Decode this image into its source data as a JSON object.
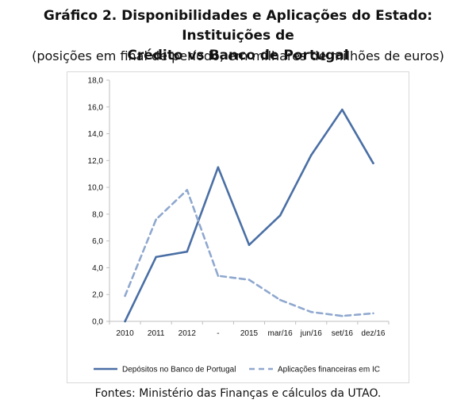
{
  "title_line1": "Gráfico 2. Disponibilidades e Aplicações do Estado: Instituições de",
  "title_line2": "Crédito vs Banco de Portugal",
  "subtitle": "(posições em final de período, em milhares de milhões de euros)",
  "source": "Fontes: Ministério das Finanças e cálculos da UTAO.",
  "colors": {
    "series1": "#4a6fa5",
    "series2": "#8fa8cf",
    "axis": "#bfbfbf"
  },
  "chart_data": {
    "type": "line",
    "categories": [
      "2010",
      "2011",
      "2012",
      "-",
      "2015",
      "mar/16",
      "jun/16",
      "set/16",
      "dez/16"
    ],
    "series": [
      {
        "name": "Depósitos no Banco de Portugal",
        "values": [
          0.0,
          4.8,
          5.2,
          11.5,
          5.7,
          7.9,
          12.4,
          15.8,
          11.8
        ]
      },
      {
        "name": "Aplicações financeiras em IC",
        "values": [
          1.9,
          7.6,
          9.8,
          3.4,
          3.1,
          1.6,
          0.7,
          0.4,
          0.6
        ]
      }
    ],
    "yticks": [
      "0,0",
      "2,0",
      "4,0",
      "6,0",
      "8,0",
      "10,0",
      "12,0",
      "14,0",
      "16,0",
      "18,0"
    ],
    "ylim": [
      0,
      18
    ],
    "legend_position": "bottom",
    "grid": false
  }
}
